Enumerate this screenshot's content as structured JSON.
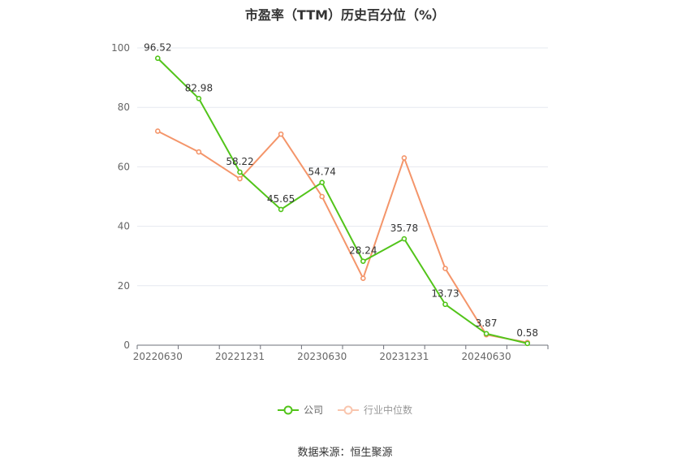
{
  "chart_data": {
    "type": "line",
    "title": "市盈率（TTM）历史百分位（%）",
    "x": [
      "20220630",
      "20220930",
      "20221231",
      "20230331",
      "20230630",
      "20230930",
      "20231231",
      "20240331",
      "20240630",
      "20240930"
    ],
    "x_tick_labels": [
      "20220630",
      "20221231",
      "20230630",
      "20231231",
      "20240630"
    ],
    "ylim": [
      0,
      100
    ],
    "y_ticks": [
      0,
      20,
      40,
      60,
      80,
      100
    ],
    "grid": true,
    "legend_position": "bottom",
    "series": [
      {
        "name": "公司",
        "color": "#52c41a",
        "values": [
          96.52,
          82.98,
          58.22,
          45.65,
          54.74,
          28.24,
          35.78,
          13.73,
          3.87,
          0.58
        ],
        "labels": [
          "96.52",
          "82.98",
          "58.22",
          "45.65",
          "54.74",
          "28.24",
          "35.78",
          "13.73",
          "3.87",
          "0.58"
        ]
      },
      {
        "name": "行业中位数",
        "color": "#f4956a",
        "values": [
          72,
          65,
          56,
          71,
          50,
          22.5,
          63,
          25.8,
          3.5,
          0.9
        ]
      }
    ]
  },
  "source": "数据来源：恒生聚源"
}
